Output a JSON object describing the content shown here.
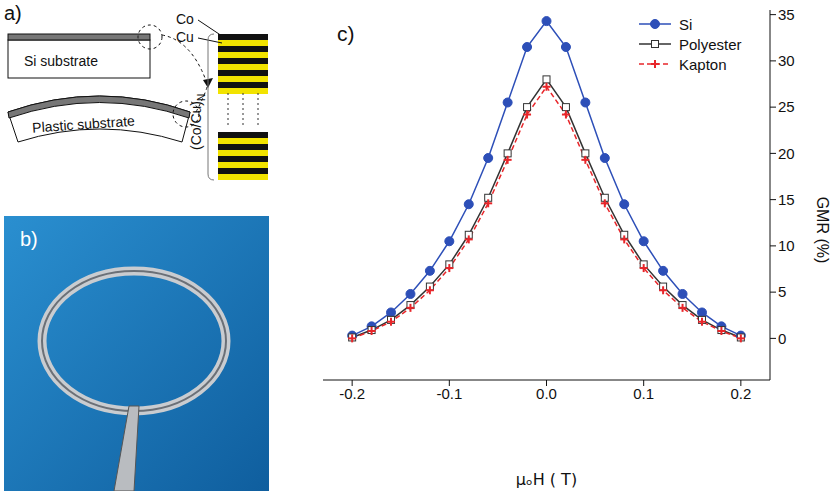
{
  "chart_data": {
    "type": "line",
    "panel_label": "c)",
    "x_label": "μₒH ( T)",
    "y_label": "GMR (%)",
    "x": [
      -0.2,
      -0.18,
      -0.16,
      -0.14,
      -0.12,
      -0.1,
      -0.08,
      -0.06,
      -0.04,
      -0.02,
      0,
      0.02,
      0.04,
      0.06,
      0.08,
      0.1,
      0.12,
      0.14,
      0.16,
      0.18,
      0.2
    ],
    "series": [
      {
        "name": "Si",
        "color": "#2d4fb8",
        "marker": "circle",
        "line_style": "solid",
        "values": [
          0.3,
          1.3,
          2.8,
          4.8,
          7.3,
          10.5,
          14.5,
          19.5,
          25.5,
          31.5,
          34.3,
          31.5,
          25.5,
          19.5,
          14.5,
          10.5,
          7.3,
          4.8,
          2.8,
          1.3,
          0.3
        ]
      },
      {
        "name": "Polyester",
        "color": "#333333",
        "marker": "square",
        "line_style": "solid",
        "values": [
          0.1,
          0.9,
          2.0,
          3.6,
          5.6,
          8.0,
          11.2,
          15.2,
          20.0,
          25.0,
          28.0,
          25.0,
          20.0,
          15.2,
          11.2,
          8.0,
          5.6,
          3.6,
          2.0,
          0.9,
          0.1
        ]
      },
      {
        "name": "Kapton",
        "color": "#e8262a",
        "marker": "plus",
        "line_style": "dashed",
        "values": [
          0.0,
          0.8,
          1.8,
          3.3,
          5.2,
          7.6,
          10.7,
          14.6,
          19.3,
          24.2,
          27.2,
          24.2,
          19.3,
          14.6,
          10.7,
          7.6,
          5.2,
          3.3,
          1.8,
          0.8,
          0.0
        ]
      }
    ],
    "xlim": [
      -0.23,
      0.23
    ],
    "ylim": [
      -4.5,
      35.5
    ],
    "xticks": [
      -0.2,
      -0.1,
      {
        "value": 0,
        "label": "0.0"
      },
      0.1,
      0.2
    ],
    "yticks": [
      0,
      5,
      10,
      15,
      20,
      25,
      30,
      35
    ],
    "legend": "upper right",
    "grid": false
  },
  "schematic": {
    "panel_a": {
      "label": "a)",
      "si_substrate": "Si substrate",
      "plastic_substrate": "Plastic substrate",
      "co": "Co",
      "cu": "Cu",
      "multilayer": "(Co/Cu)",
      "multilayer_subscript": "N"
    },
    "panel_b": {
      "label": "b)"
    }
  }
}
